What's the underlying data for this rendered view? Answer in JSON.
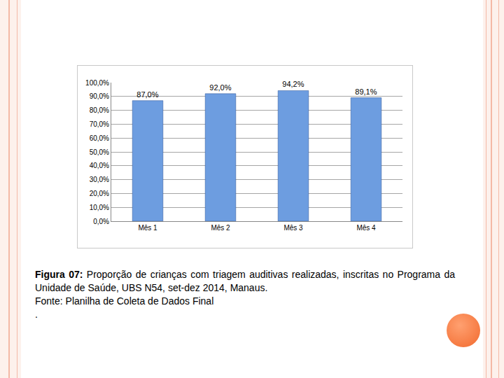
{
  "chart_data": {
    "type": "bar",
    "categories": [
      "Mês 1",
      "Mês 2",
      "Mês 3",
      "Mês 4"
    ],
    "values": [
      87.0,
      92.0,
      94.2,
      89.1
    ],
    "value_labels": [
      "87,0%",
      "92,0%",
      "94,2%",
      "89,1%"
    ],
    "data_labels": true,
    "color": "#6d9de0",
    "ylim": [
      0,
      100
    ],
    "yticks": [
      {
        "value": 0,
        "label": "0,0%"
      },
      {
        "value": 10,
        "label": "10,0%"
      },
      {
        "value": 20,
        "label": "20,0%"
      },
      {
        "value": 30,
        "label": "30,0%"
      },
      {
        "value": 40,
        "label": "40,0%"
      },
      {
        "value": 50,
        "label": "50,0%"
      },
      {
        "value": 60,
        "label": "60,0%"
      },
      {
        "value": 70,
        "label": "70,0%"
      },
      {
        "value": 80,
        "label": "80,0%"
      },
      {
        "value": 90,
        "label": "90,0%"
      },
      {
        "value": 100,
        "label": "100,0%"
      }
    ],
    "grid": true
  },
  "caption": {
    "label": "Figura 07:",
    "text": "Proporção de crianças com triagem auditivas realizadas, inscritas no Programa da Unidade de Saúde, UBS N54, set-dez 2014, Manaus.",
    "source": "Fonte: Planilha de Coleta de Dados Final",
    "trailing": "."
  }
}
